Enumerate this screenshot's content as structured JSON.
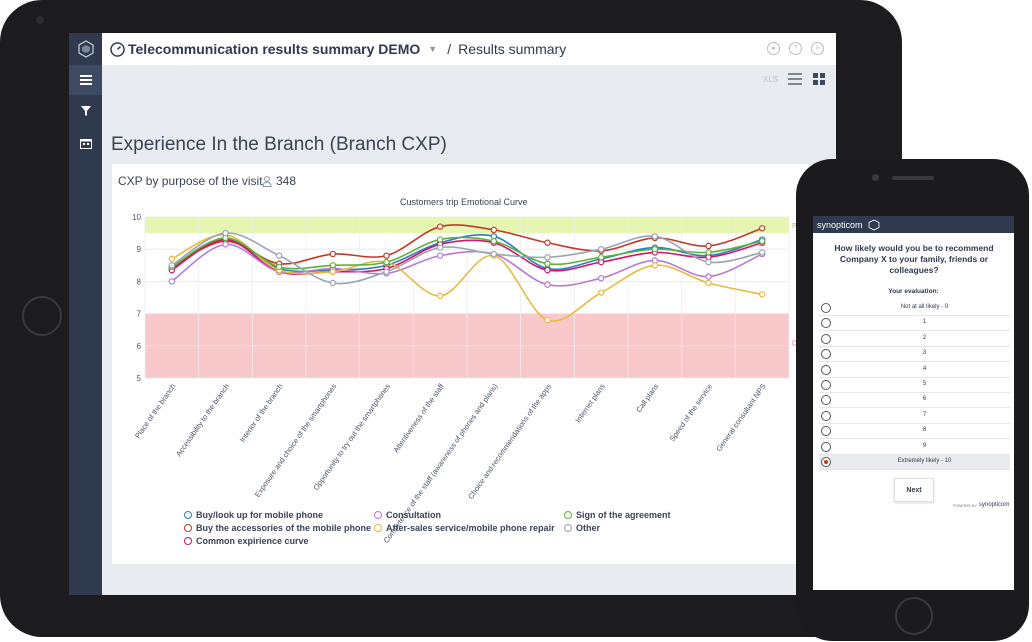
{
  "app": {
    "title": "Telecommunication results summary DEMO",
    "breadcrumb_sep": "/",
    "crumb": "Results summary",
    "toolbar": {
      "export_label": "XLS"
    },
    "sidebar": {
      "items": [
        "menu-icon",
        "filter-icon",
        "calendar-icon"
      ]
    }
  },
  "page": {
    "title": "Experience In the Branch (Branch CXP)",
    "card_title": "CXP by purpose of the visit",
    "count": "348"
  },
  "chart_data": {
    "type": "line",
    "title": "Customers trip Emotional Curve",
    "ylim": [
      5,
      10
    ],
    "yticks": [
      "10",
      "9",
      "8",
      "7",
      "6",
      "5"
    ],
    "categories": [
      "Place of the branch",
      "Accessibility to the branch",
      "Interior of the branch",
      "Exposure and choice of the smartphones",
      "Opportunity to try out the smartphones",
      "Attentiveness of the staff",
      "Competence of the staff (awareness of phones and plans)",
      "Choice and recommendations of the apps",
      "Internet plans",
      "Call plans",
      "Speed of the service",
      "General consultant NPS"
    ],
    "bands": [
      {
        "from": 9.5,
        "to": 10,
        "color": "#e6f5b0"
      },
      {
        "from": 5,
        "to": 7,
        "color": "#f9c8cb"
      }
    ],
    "band_labels": {
      "top": "Pos",
      "bottom": "Da"
    },
    "series": [
      {
        "name": "Buy/look up for mobile phone",
        "color": "#2a7fc0",
        "values": [
          8.4,
          9.3,
          8.4,
          8.35,
          8.5,
          9.2,
          9.4,
          8.4,
          8.7,
          9.05,
          8.8,
          9.3
        ]
      },
      {
        "name": "Buy the accessories of the mobile phone",
        "color": "#c0392b",
        "values": [
          8.45,
          9.25,
          8.55,
          8.85,
          8.8,
          9.7,
          9.6,
          9.2,
          8.95,
          9.35,
          9.1,
          9.65
        ]
      },
      {
        "name": "Common expirience curve",
        "color": "#d6146b",
        "values": [
          8.35,
          9.3,
          8.3,
          8.3,
          8.4,
          9.15,
          9.2,
          8.35,
          8.6,
          8.9,
          8.75,
          9.2
        ]
      },
      {
        "name": "Consultation",
        "color": "#b77ad4",
        "values": [
          8.0,
          9.15,
          8.3,
          8.4,
          8.25,
          8.8,
          8.85,
          7.9,
          8.1,
          8.65,
          8.15,
          8.85
        ]
      },
      {
        "name": "After-sales service/mobile phone repair",
        "color": "#e8b93a",
        "values": [
          8.7,
          9.45,
          8.35,
          8.3,
          8.6,
          7.55,
          8.8,
          6.8,
          7.65,
          8.5,
          7.95,
          7.6
        ]
      },
      {
        "name": "Sign of the agreement",
        "color": "#5bb33a",
        "values": [
          8.45,
          9.35,
          8.45,
          8.5,
          8.6,
          9.3,
          9.25,
          8.55,
          8.75,
          9.0,
          8.9,
          9.25
        ]
      },
      {
        "name": "Other",
        "color": "#9aa3b5",
        "values": [
          8.5,
          9.5,
          8.8,
          7.95,
          8.3,
          9.05,
          8.85,
          8.75,
          9.0,
          9.4,
          8.6,
          8.9
        ]
      }
    ],
    "legend_placement": "bottom"
  },
  "survey": {
    "brand": "synopticom",
    "question": "How likely would you be to recommend Company X to your family, friends or colleagues?",
    "eval_label": "Your evaluation:",
    "options": [
      "Not at all likely - 0",
      "1",
      "2",
      "3",
      "4",
      "5",
      "6",
      "7",
      "8",
      "9",
      "Extremely likely - 10"
    ],
    "selected_index": 10,
    "next_label": "Next",
    "powered_by": "POWERED BY",
    "footer_brand": "synopticom"
  }
}
